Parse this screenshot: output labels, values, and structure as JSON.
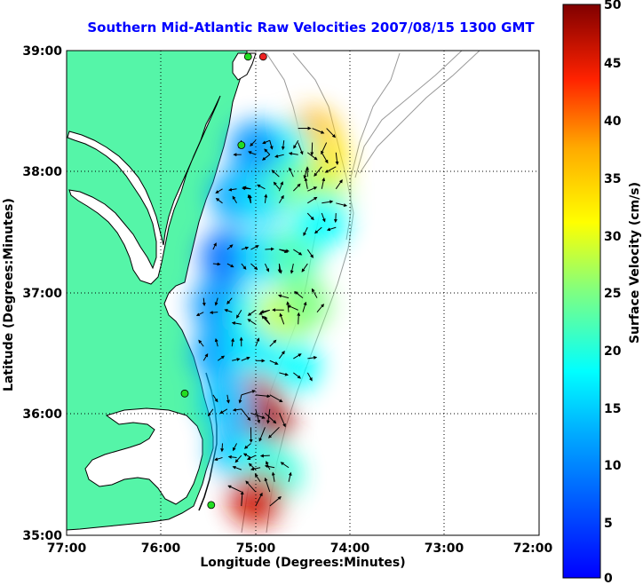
{
  "title": "Southern Mid-Atlantic Raw Velocities 2007/08/15 1300 GMT",
  "x_axis": {
    "label": "Longitude (Degrees:Minutes)",
    "ticks": [
      "77:00",
      "76:00",
      "75:00",
      "74:00",
      "73:00",
      "72:00"
    ],
    "range_deg_west": [
      77,
      72
    ]
  },
  "y_axis": {
    "label": "Latitude (Degrees:Minutes)",
    "ticks": [
      "39:00",
      "38:00",
      "37:00",
      "36:00",
      "35:00"
    ],
    "range_deg_north": [
      35,
      39
    ]
  },
  "colorbar": {
    "label": "Surface Velocity (cm/s)",
    "ticks": [
      "50",
      "45",
      "40",
      "35",
      "30",
      "25",
      "20",
      "15",
      "10",
      "5",
      "0"
    ],
    "range": [
      0,
      50
    ],
    "units": "cm/s"
  },
  "colors": {
    "land": "#55f5a8",
    "water": "#ffffff",
    "title": "#0000ff",
    "coast": "#000000",
    "bathymetry": "#999999",
    "station_green": "#22dd22",
    "station_red": "#ee2222"
  },
  "grid": true,
  "chart_data": {
    "type": "heatmap",
    "title": "Southern Mid-Atlantic Raw Velocities 2007/08/15 1300 GMT",
    "xlabel": "Longitude (Degrees:Minutes)",
    "ylabel": "Latitude (Degrees:Minutes)",
    "xlim": [
      -77,
      -72
    ],
    "ylim": [
      35,
      39
    ],
    "colorbar_label": "Surface Velocity (cm/s)",
    "colorbar_range": [
      0,
      50
    ],
    "grid": true,
    "velocity_samples": [
      {
        "lon": -74.4,
        "lat": 38.3,
        "speed": 36
      },
      {
        "lon": -74.3,
        "lat": 38.1,
        "speed": 33
      },
      {
        "lon": -74.7,
        "lat": 38.2,
        "speed": 18
      },
      {
        "lon": -75.0,
        "lat": 38.2,
        "speed": 11
      },
      {
        "lon": -75.2,
        "lat": 37.8,
        "speed": 12
      },
      {
        "lon": -74.9,
        "lat": 37.8,
        "speed": 16
      },
      {
        "lon": -74.6,
        "lat": 37.9,
        "speed": 22
      },
      {
        "lon": -74.3,
        "lat": 37.8,
        "speed": 28
      },
      {
        "lon": -75.3,
        "lat": 37.3,
        "speed": 8
      },
      {
        "lon": -74.9,
        "lat": 37.3,
        "speed": 16
      },
      {
        "lon": -74.6,
        "lat": 37.3,
        "speed": 22
      },
      {
        "lon": -74.3,
        "lat": 37.6,
        "speed": 18
      },
      {
        "lon": -75.4,
        "lat": 36.9,
        "speed": 11
      },
      {
        "lon": -75.0,
        "lat": 36.8,
        "speed": 19
      },
      {
        "lon": -74.7,
        "lat": 36.8,
        "speed": 30
      },
      {
        "lon": -74.5,
        "lat": 36.9,
        "speed": 25
      },
      {
        "lon": -75.4,
        "lat": 36.5,
        "speed": 12
      },
      {
        "lon": -75.0,
        "lat": 36.5,
        "speed": 17
      },
      {
        "lon": -74.6,
        "lat": 36.4,
        "speed": 18
      },
      {
        "lon": -75.0,
        "lat": 36.1,
        "speed": 45
      },
      {
        "lon": -74.9,
        "lat": 35.95,
        "speed": 48
      },
      {
        "lon": -75.3,
        "lat": 36.1,
        "speed": 14
      },
      {
        "lon": -75.2,
        "lat": 35.7,
        "speed": 13
      },
      {
        "lon": -75.0,
        "lat": 35.6,
        "speed": 18
      },
      {
        "lon": -74.8,
        "lat": 35.5,
        "speed": 20
      },
      {
        "lon": -75.0,
        "lat": 35.3,
        "speed": 46
      }
    ],
    "stations": [
      {
        "lon": -74.92,
        "lat": 38.95,
        "color": "red"
      },
      {
        "lon": -75.08,
        "lat": 38.95,
        "color": "green"
      },
      {
        "lon": -75.15,
        "lat": 38.22,
        "color": "green"
      },
      {
        "lon": -75.75,
        "lat": 36.17,
        "color": "green"
      },
      {
        "lon": -75.47,
        "lat": 35.25,
        "color": "green"
      }
    ]
  }
}
